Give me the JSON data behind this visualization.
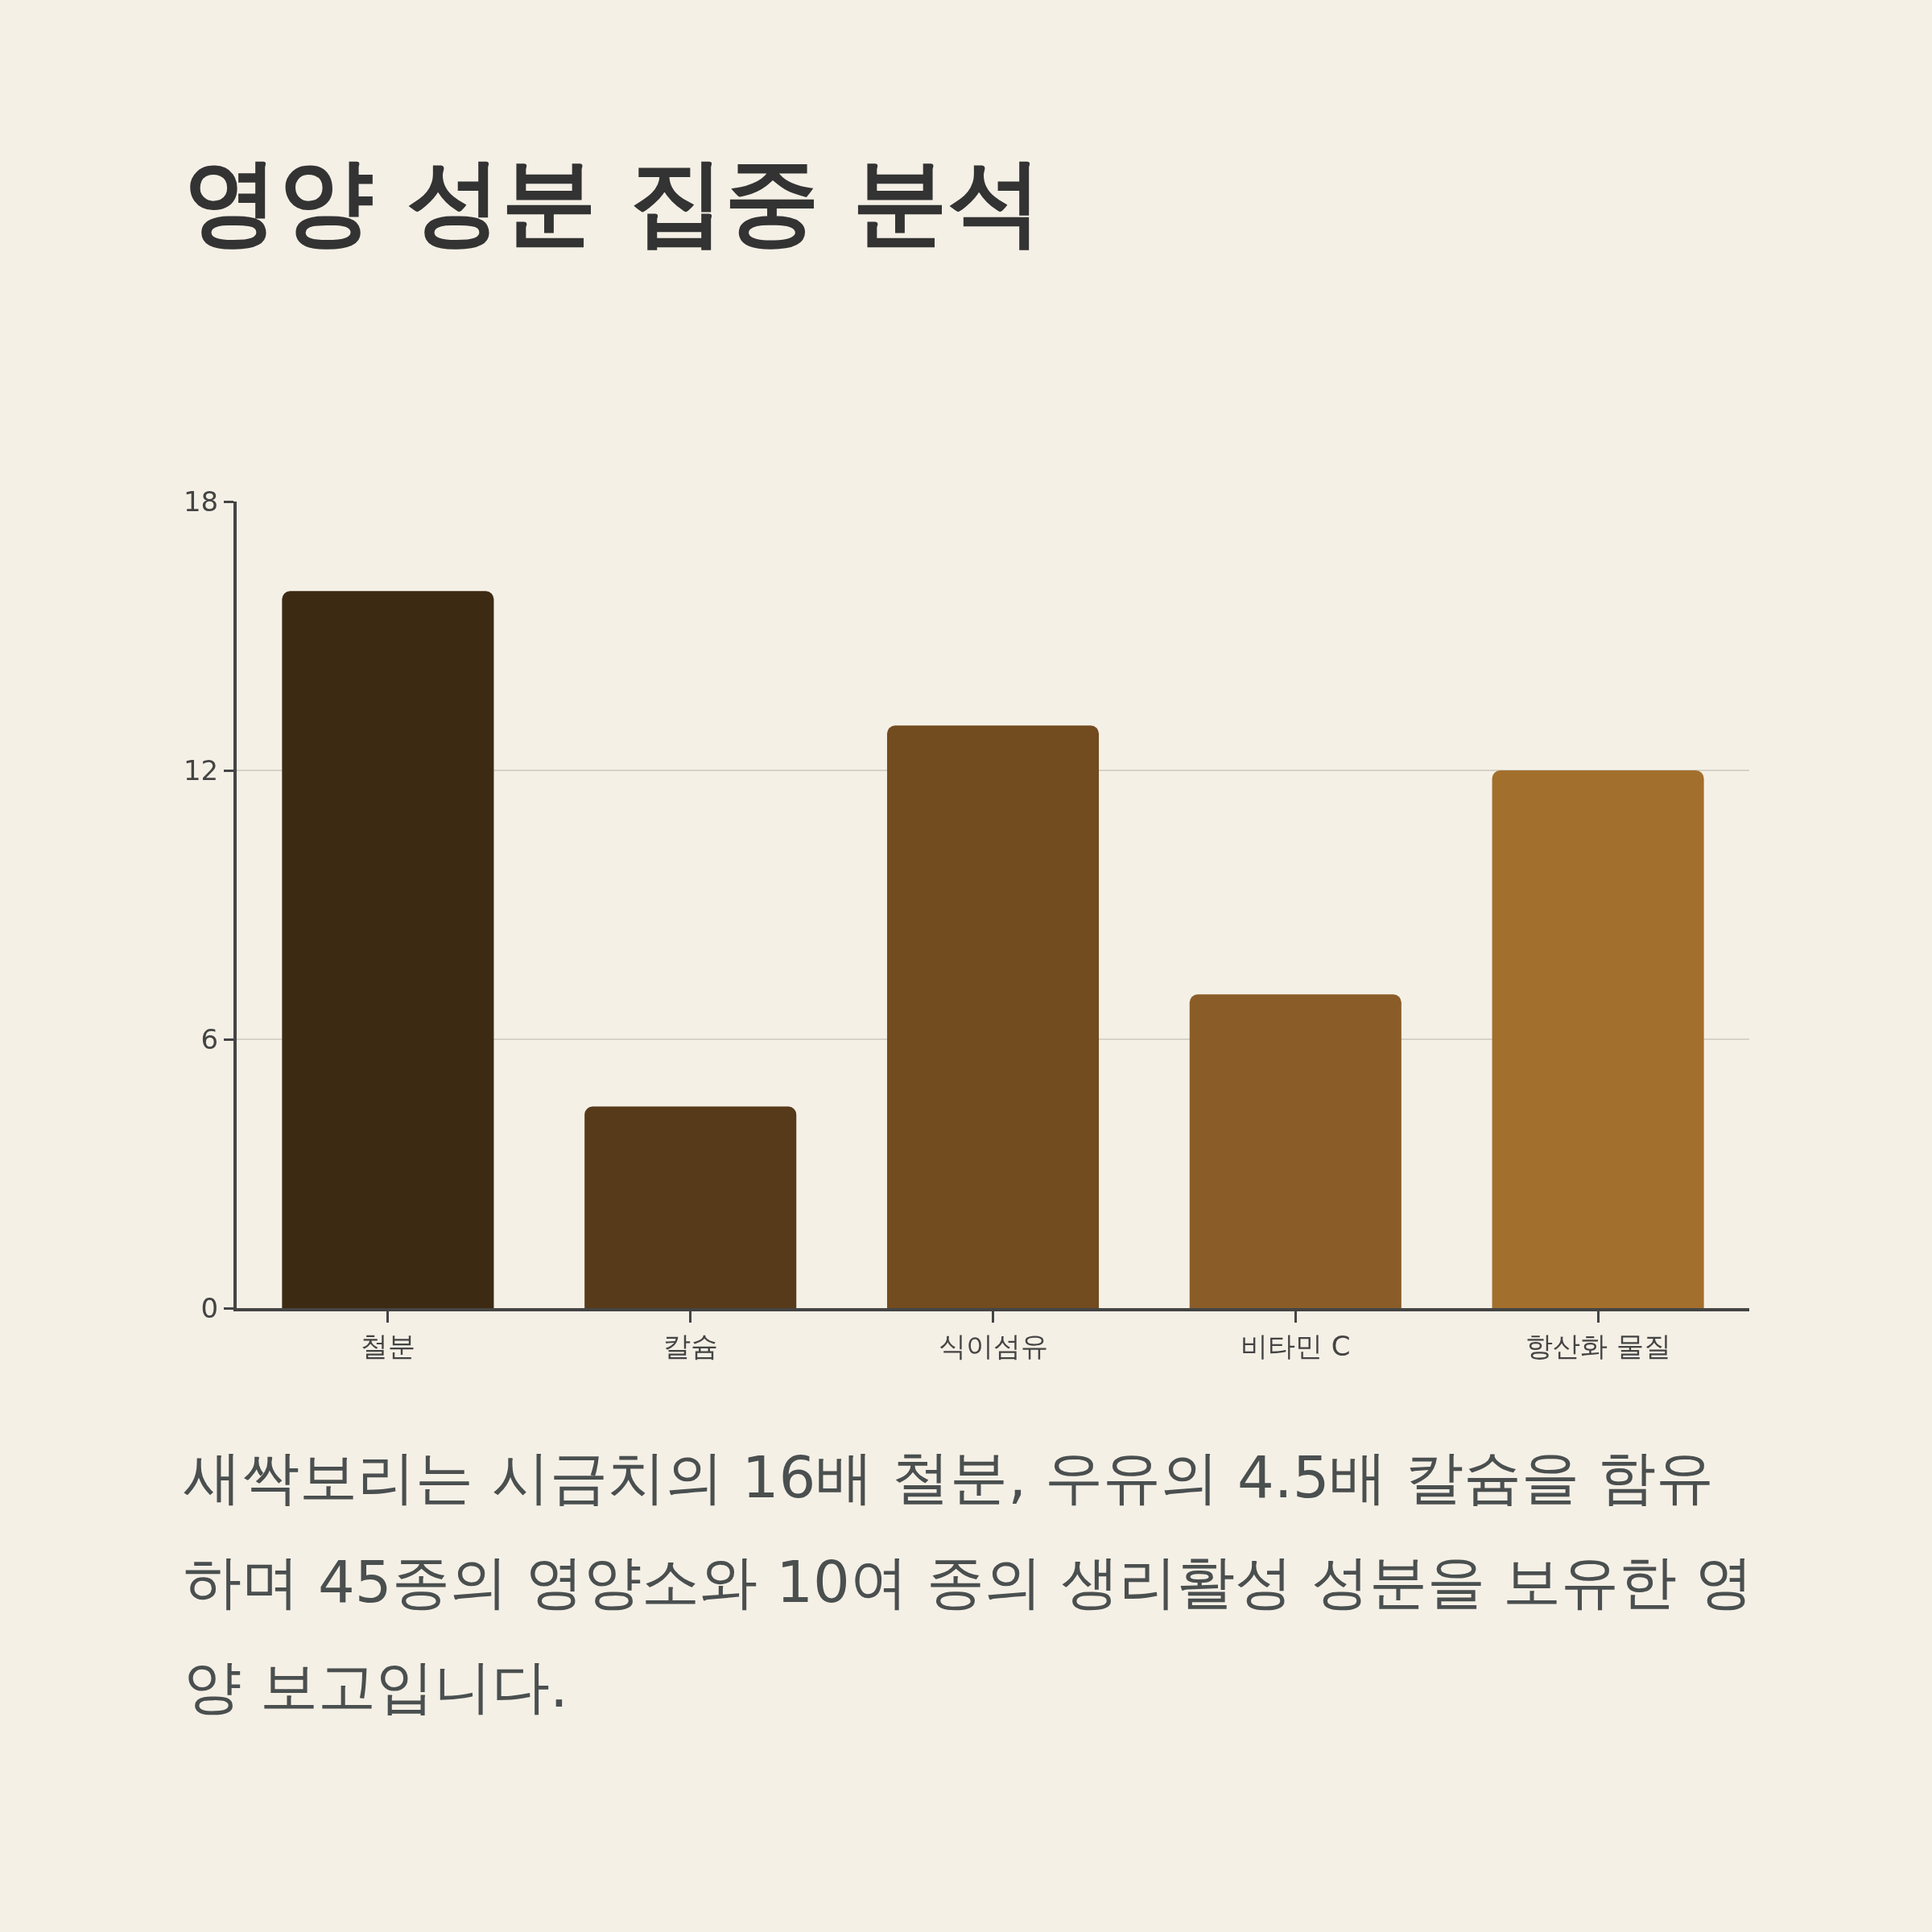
{
  "chart_data": {
    "type": "bar",
    "title": "영양 성분 집중 분석",
    "categories": [
      "철분",
      "칼슘",
      "식이섬유",
      "비타민 C",
      "항산화 물질"
    ],
    "values": [
      16,
      4.5,
      13,
      7,
      12
    ],
    "colors": [
      "#3d2a12",
      "#573a19",
      "#724b1f",
      "#8a5d28",
      "#a36f2c"
    ],
    "ylim": [
      0,
      18
    ],
    "yticks": [
      0,
      6,
      12,
      18
    ],
    "grid": "y",
    "annotations": [
      "새싹보리는 시금치의 16배 철분, 우유의 4.5배 칼슘을 함유하며 45종의 영양소와 10여 종의 생리활성 성분을 보유한 영양 보고입니다."
    ]
  }
}
